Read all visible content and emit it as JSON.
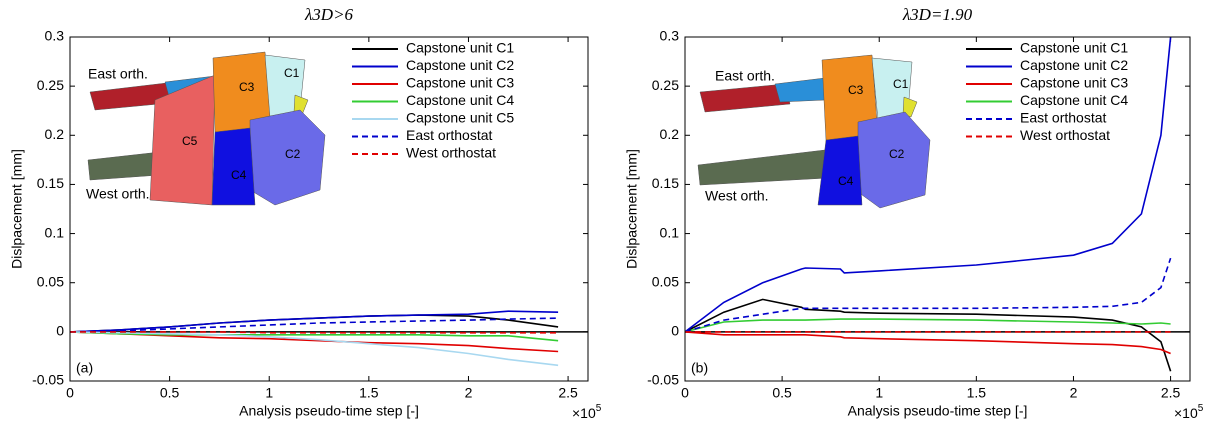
{
  "chart_data": [
    {
      "type": "line",
      "title": "λ3D>6",
      "panel_label": "(a)",
      "xlabel": "Analysis pseudo-time step [-]",
      "ylabel": "Dislpacement [mm]",
      "x_multiplier": "×10",
      "x_exponent": "5",
      "xlim": [
        0,
        2.6
      ],
      "xticks": [
        0,
        0.5,
        1,
        1.5,
        2,
        2.5
      ],
      "ylim": [
        -0.05,
        0.3
      ],
      "yticks": [
        -0.05,
        0,
        0.05,
        0.1,
        0.15,
        0.2,
        0.25,
        0.3
      ],
      "legend": "upper right",
      "inset_labels": [
        "East orth.",
        "West orth.",
        "C1",
        "C2",
        "C3",
        "C4",
        "C5"
      ],
      "x": [
        0,
        0.25,
        0.5,
        0.75,
        1,
        1.25,
        1.5,
        1.75,
        2,
        2.2,
        2.45
      ],
      "series": [
        {
          "name": "Capstone unit C1",
          "color": "#000000",
          "dash": false,
          "values": [
            0,
            0.002,
            0.005,
            0.009,
            0.012,
            0.014,
            0.016,
            0.017,
            0.016,
            0.012,
            0.005
          ]
        },
        {
          "name": "Capstone unit C2",
          "color": "#0000cc",
          "dash": false,
          "values": [
            0,
            0.002,
            0.005,
            0.009,
            0.012,
            0.014,
            0.016,
            0.017,
            0.018,
            0.021,
            0.02
          ]
        },
        {
          "name": "Capstone unit C3",
          "color": "#e00000",
          "dash": false,
          "values": [
            0,
            -0.002,
            -0.004,
            -0.006,
            -0.007,
            -0.009,
            -0.011,
            -0.012,
            -0.014,
            -0.017,
            -0.02
          ]
        },
        {
          "name": "Capstone unit C4",
          "color": "#33cc33",
          "dash": false,
          "values": [
            0,
            -0.002,
            -0.003,
            -0.003,
            -0.003,
            -0.003,
            -0.003,
            -0.003,
            -0.004,
            -0.004,
            -0.009
          ]
        },
        {
          "name": "Capstone unit C5",
          "color": "#a8d8f0",
          "dash": false,
          "values": [
            0,
            -0.001,
            -0.002,
            -0.003,
            -0.005,
            -0.008,
            -0.012,
            -0.016,
            -0.022,
            -0.028,
            -0.034
          ]
        },
        {
          "name": "East orthostat",
          "color": "#0000cc",
          "dash": true,
          "values": [
            0,
            0.001,
            0.003,
            0.005,
            0.007,
            0.009,
            0.01,
            0.011,
            0.012,
            0.013,
            0.014
          ]
        },
        {
          "name": "West orthostat",
          "color": "#e00000",
          "dash": true,
          "values": [
            0,
            0,
            0,
            0,
            -0.001,
            -0.001,
            -0.001,
            -0.001,
            -0.001,
            -0.001,
            -0.001
          ]
        }
      ]
    },
    {
      "type": "line",
      "title": "λ3D=1.90",
      "panel_label": "(b)",
      "xlabel": "Analysis pseudo-time step [-]",
      "ylabel": "Dislpacement [mm]",
      "x_multiplier": "×10",
      "x_exponent": "5",
      "xlim": [
        0,
        2.6
      ],
      "xticks": [
        0,
        0.5,
        1,
        1.5,
        2,
        2.5
      ],
      "ylim": [
        -0.05,
        0.3
      ],
      "yticks": [
        -0.05,
        0,
        0.05,
        0.1,
        0.15,
        0.2,
        0.25,
        0.3
      ],
      "legend": "upper right",
      "inset_labels": [
        "East orth.",
        "West orth.",
        "C1",
        "C2",
        "C3",
        "C4"
      ],
      "x": [
        0,
        0.2,
        0.4,
        0.6,
        0.62,
        0.8,
        0.82,
        1,
        1.5,
        2,
        2.2,
        2.35,
        2.45,
        2.5
      ],
      "series": [
        {
          "name": "Capstone unit C1",
          "color": "#000000",
          "dash": false,
          "values": [
            0,
            0.02,
            0.033,
            0.025,
            0.023,
            0.021,
            0.02,
            0.019,
            0.018,
            0.015,
            0.012,
            0.005,
            -0.01,
            -0.04
          ]
        },
        {
          "name": "Capstone unit C2",
          "color": "#0000cc",
          "dash": false,
          "values": [
            0,
            0.03,
            0.05,
            0.064,
            0.065,
            0.064,
            0.06,
            0.062,
            0.068,
            0.078,
            0.09,
            0.12,
            0.2,
            0.3
          ]
        },
        {
          "name": "Capstone unit C3",
          "color": "#e00000",
          "dash": false,
          "values": [
            0,
            -0.003,
            -0.003,
            -0.003,
            -0.003,
            -0.005,
            -0.006,
            -0.007,
            -0.009,
            -0.012,
            -0.013,
            -0.015,
            -0.018,
            -0.022
          ]
        },
        {
          "name": "Capstone unit C4",
          "color": "#33cc33",
          "dash": false,
          "values": [
            0,
            0.01,
            0.012,
            0.012,
            0.012,
            0.013,
            0.013,
            0.013,
            0.012,
            0.01,
            0.009,
            0.008,
            0.009,
            0.008
          ]
        },
        {
          "name": "East orthostat",
          "color": "#0000cc",
          "dash": true,
          "values": [
            0,
            0.012,
            0.018,
            0.024,
            0.024,
            0.024,
            0.024,
            0.024,
            0.024,
            0.025,
            0.026,
            0.03,
            0.045,
            0.075
          ]
        },
        {
          "name": "West orthostat",
          "color": "#e00000",
          "dash": true,
          "values": [
            0,
            0,
            0,
            0,
            0,
            0,
            0,
            0,
            0,
            0,
            0,
            0,
            0,
            0
          ]
        }
      ]
    }
  ]
}
